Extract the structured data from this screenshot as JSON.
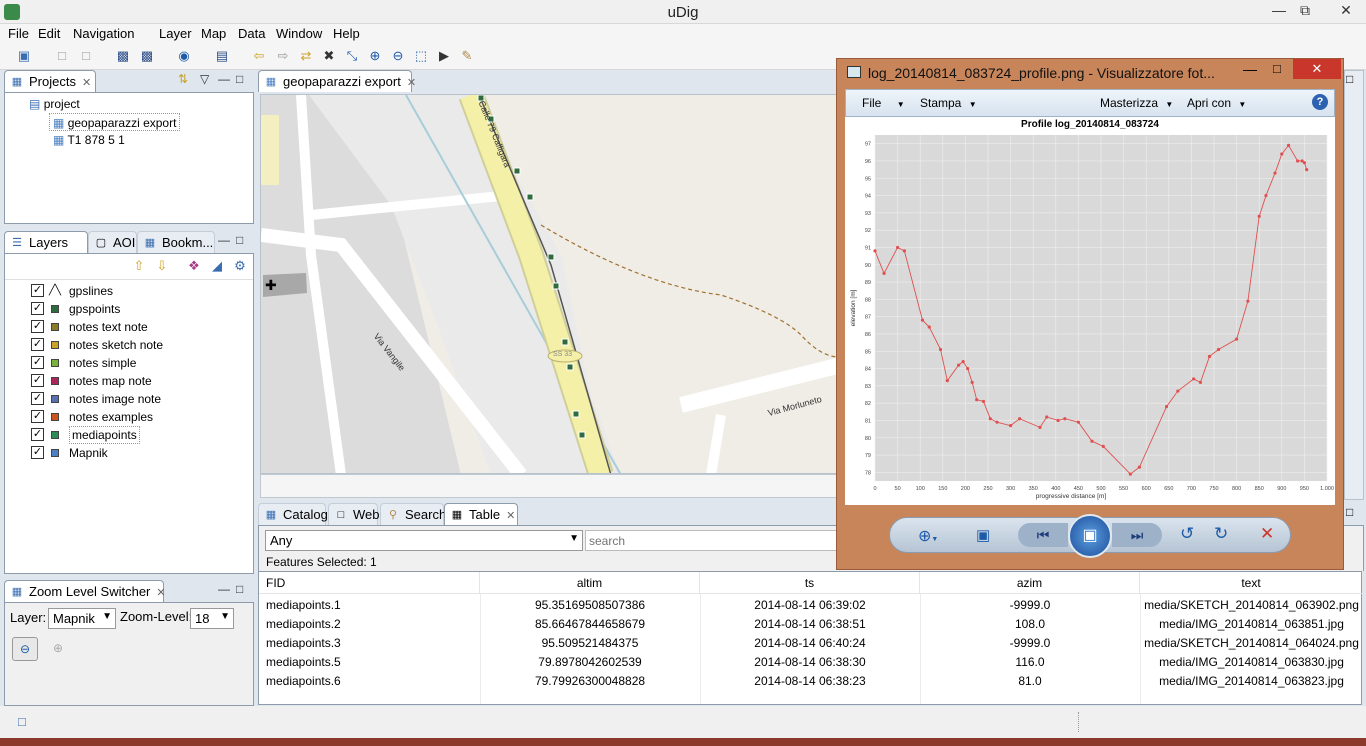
{
  "app": {
    "title": "uDig"
  },
  "menu": [
    "File",
    "Edit",
    "Navigation",
    "Layer",
    "Map",
    "Data",
    "Window",
    "Help"
  ],
  "projects": {
    "tab": "Projects",
    "root": "project",
    "items": [
      "geopaparazzi export",
      "T1 878 5 1"
    ]
  },
  "layers_panel": {
    "tabs": [
      "Layers",
      "AOI",
      "Bookm..."
    ],
    "layers": [
      {
        "name": "gpslines",
        "color": "#444444"
      },
      {
        "name": "gpspoints",
        "color": "#2f6b3f"
      },
      {
        "name": "notes text note",
        "color": "#8a7a2a"
      },
      {
        "name": "notes sketch note",
        "color": "#c9a227"
      },
      {
        "name": "notes simple",
        "color": "#7bb33a"
      },
      {
        "name": "notes map note",
        "color": "#b0245c"
      },
      {
        "name": "notes image note",
        "color": "#5a6fb0"
      },
      {
        "name": "notes examples",
        "color": "#c9561e"
      },
      {
        "name": "mediapoints",
        "color": "#2e8b57"
      },
      {
        "name": "Mapnik",
        "color": "#4a7fc1"
      }
    ]
  },
  "zoom": {
    "tab": "Zoom Level Switcher",
    "layer_label": "Layer:",
    "layer_value": "Mapnik",
    "zoom_label": "Zoom-Level:",
    "zoom_value": "18"
  },
  "map": {
    "tab": "geopaparazzi export",
    "streets": [
      "Calle 79 Calligara",
      "Via Vangile",
      "Via Morluneto"
    ],
    "shield": "SS 33"
  },
  "bottom": {
    "tabs": [
      "Catalog",
      "Web",
      "Search",
      "Table"
    ],
    "filter": "Any",
    "search_placeholder": "search",
    "features_selected": "Features Selected: 1"
  },
  "table": {
    "columns": [
      "FID",
      "altim",
      "ts",
      "azim",
      "text"
    ],
    "rows": [
      [
        "mediapoints.1",
        "95.35169508507386",
        "2014-08-14 06:39:02",
        "-9999.0",
        "media/SKETCH_20140814_063902.png"
      ],
      [
        "mediapoints.2",
        "85.66467844658679",
        "2014-08-14 06:38:51",
        "108.0",
        "media/IMG_20140814_063851.jpg"
      ],
      [
        "mediapoints.3",
        "95.509521484375",
        "2014-08-14 06:40:24",
        "-9999.0",
        "media/SKETCH_20140814_064024.png"
      ],
      [
        "mediapoints.5",
        "79.8978042602539",
        "2014-08-14 06:38:30",
        "116.0",
        "media/IMG_20140814_063830.jpg"
      ],
      [
        "mediapoints.6",
        "79.79926300048828",
        "2014-08-14 06:38:23",
        "81.0",
        "media/IMG_20140814_063823.jpg"
      ]
    ]
  },
  "viewer": {
    "title": "log_20140814_083724_profile.png - Visualizzatore fot...",
    "menu": [
      "File",
      "Stampa",
      "Masterizza",
      "Apri con"
    ],
    "help": "?"
  },
  "chart_data": {
    "type": "line",
    "title": "Profile log_20140814_083724",
    "xlabel": "progressive distance [m]",
    "ylabel": "elevation [m]",
    "xlim": [
      0,
      1000
    ],
    "ylim": [
      77.5,
      97.5
    ],
    "xticks": [
      "0",
      "50",
      "100",
      "150",
      "200",
      "250",
      "300",
      "350",
      "400",
      "450",
      "500",
      "550",
      "600",
      "650",
      "700",
      "750",
      "800",
      "850",
      "900",
      "950",
      "1.000"
    ],
    "yticks": [
      "78",
      "79",
      "80",
      "81",
      "82",
      "83",
      "84",
      "85",
      "86",
      "87",
      "88",
      "89",
      "90",
      "91",
      "92",
      "93",
      "94",
      "95",
      "96",
      "97"
    ],
    "grid": true,
    "line_color": "#e05050",
    "x": [
      0,
      20,
      50,
      65,
      105,
      120,
      145,
      160,
      185,
      195,
      205,
      215,
      225,
      240,
      255,
      270,
      300,
      320,
      365,
      380,
      405,
      420,
      450,
      480,
      505,
      565,
      585,
      645,
      670,
      705,
      720,
      740,
      760,
      800,
      825,
      850,
      865,
      885,
      900,
      915,
      935,
      945,
      950,
      955
    ],
    "y": [
      90.8,
      89.5,
      91,
      90.8,
      86.8,
      86.4,
      85.1,
      83.3,
      84.2,
      84.4,
      84,
      83.2,
      82.2,
      82.1,
      81.1,
      80.9,
      80.7,
      81.1,
      80.6,
      81.2,
      81,
      81.1,
      80.9,
      79.8,
      79.5,
      77.9,
      78.3,
      81.8,
      82.7,
      83.4,
      83.2,
      84.7,
      85.1,
      85.7,
      87.9,
      92.8,
      94,
      95.3,
      96.4,
      96.9,
      96,
      96,
      95.9,
      95.5
    ]
  }
}
